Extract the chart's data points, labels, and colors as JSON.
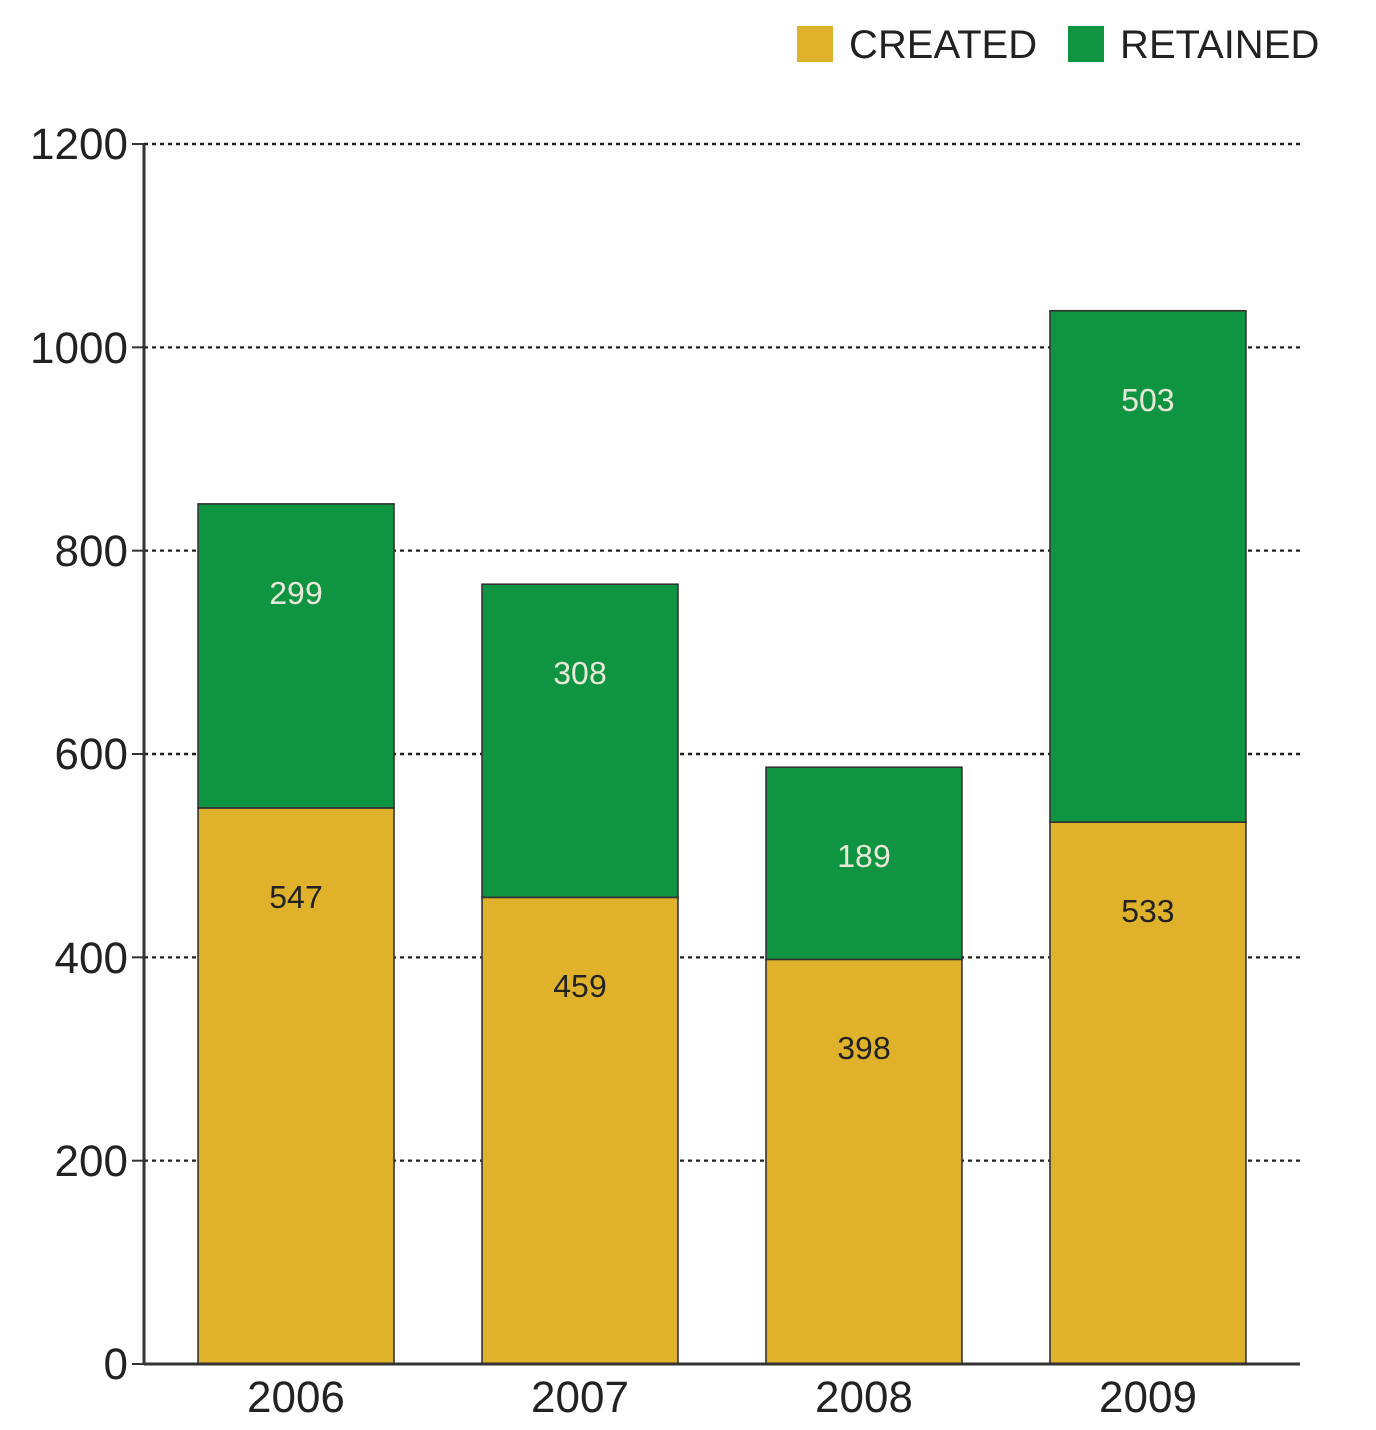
{
  "chart_data": {
    "type": "bar",
    "stacked": true,
    "categories": [
      "2006",
      "2007",
      "2008",
      "2009"
    ],
    "series": [
      {
        "name": "CREATED",
        "color": "#e0b22c",
        "values": [
          547,
          459,
          398,
          533
        ]
      },
      {
        "name": "RETAINED",
        "color": "#0f9442",
        "values": [
          299,
          308,
          189,
          503
        ]
      }
    ],
    "ylim": [
      0,
      1200
    ],
    "yticks": [
      0,
      200,
      400,
      600,
      800,
      1000,
      1200
    ],
    "grid": "y",
    "legend": "top right",
    "data_labels": true
  }
}
